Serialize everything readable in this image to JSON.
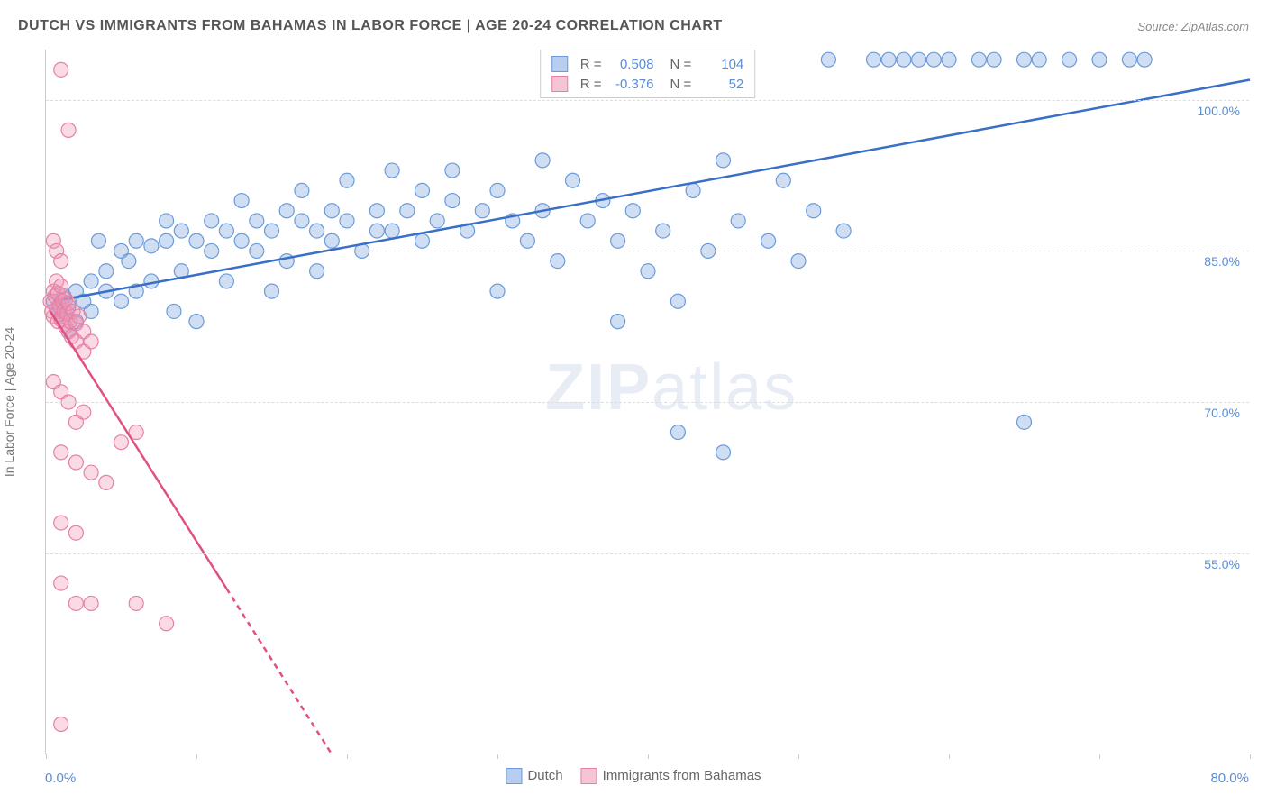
{
  "title": "DUTCH VS IMMIGRANTS FROM BAHAMAS IN LABOR FORCE | AGE 20-24 CORRELATION CHART",
  "source": "Source: ZipAtlas.com",
  "y_axis_label": "In Labor Force | Age 20-24",
  "watermark_zip": "ZIP",
  "watermark_atlas": "atlas",
  "chart": {
    "type": "scatter",
    "xlim": [
      0,
      80
    ],
    "ylim": [
      35,
      105
    ],
    "x_ticks": [
      0,
      10,
      20,
      30,
      40,
      50,
      60,
      70,
      80
    ],
    "x_tick_labels": {
      "0": "0.0%",
      "80": "80.0%"
    },
    "y_ticks": [
      55,
      70,
      85,
      100
    ],
    "y_tick_labels": {
      "55": "55.0%",
      "70": "70.0%",
      "85": "85.0%",
      "100": "100.0%"
    },
    "grid_color": "#dddddd",
    "background_color": "#ffffff",
    "series": [
      {
        "name": "Dutch",
        "label": "Dutch",
        "color_fill": "rgba(120,160,220,0.35)",
        "color_stroke": "#6a9bda",
        "swatch_fill": "#b8cef0",
        "swatch_stroke": "#6a9bda",
        "marker_radius": 8,
        "R": "0.508",
        "N": "104",
        "trend": {
          "x1": 0.5,
          "y1": 80,
          "x2": 80,
          "y2": 102,
          "stroke": "#3a6fc7",
          "width": 2.5,
          "dash_after_x": null
        },
        "points": [
          [
            0.5,
            80
          ],
          [
            0.8,
            79
          ],
          [
            1,
            78.5
          ],
          [
            1.2,
            80.5
          ],
          [
            1.5,
            79.5
          ],
          [
            1.5,
            77
          ],
          [
            2,
            81
          ],
          [
            2,
            78
          ],
          [
            2.5,
            80
          ],
          [
            3,
            82
          ],
          [
            3,
            79
          ],
          [
            3.5,
            86
          ],
          [
            4,
            81
          ],
          [
            4,
            83
          ],
          [
            5,
            85
          ],
          [
            5,
            80
          ],
          [
            5.5,
            84
          ],
          [
            6,
            86
          ],
          [
            6,
            81
          ],
          [
            7,
            85.5
          ],
          [
            7,
            82
          ],
          [
            8,
            86
          ],
          [
            8,
            88
          ],
          [
            8.5,
            79
          ],
          [
            9,
            87
          ],
          [
            9,
            83
          ],
          [
            10,
            86
          ],
          [
            10,
            78
          ],
          [
            11,
            85
          ],
          [
            11,
            88
          ],
          [
            12,
            87
          ],
          [
            12,
            82
          ],
          [
            13,
            86
          ],
          [
            13,
            90
          ],
          [
            14,
            85
          ],
          [
            14,
            88
          ],
          [
            15,
            87
          ],
          [
            15,
            81
          ],
          [
            16,
            89
          ],
          [
            16,
            84
          ],
          [
            17,
            88
          ],
          [
            17,
            91
          ],
          [
            18,
            87
          ],
          [
            18,
            83
          ],
          [
            19,
            89
          ],
          [
            19,
            86
          ],
          [
            20,
            88
          ],
          [
            20,
            92
          ],
          [
            21,
            85
          ],
          [
            22,
            89
          ],
          [
            22,
            87
          ],
          [
            23,
            93
          ],
          [
            23,
            87
          ],
          [
            24,
            89
          ],
          [
            25,
            91
          ],
          [
            25,
            86
          ],
          [
            26,
            88
          ],
          [
            27,
            90
          ],
          [
            27,
            93
          ],
          [
            28,
            87
          ],
          [
            29,
            89
          ],
          [
            30,
            91
          ],
          [
            30,
            81
          ],
          [
            31,
            88
          ],
          [
            32,
            86
          ],
          [
            33,
            94
          ],
          [
            33,
            89
          ],
          [
            34,
            84
          ],
          [
            35,
            92
          ],
          [
            36,
            88
          ],
          [
            37,
            90
          ],
          [
            38,
            86
          ],
          [
            38,
            78
          ],
          [
            39,
            89
          ],
          [
            40,
            83
          ],
          [
            41,
            87
          ],
          [
            42,
            80
          ],
          [
            43,
            91
          ],
          [
            44,
            85
          ],
          [
            45,
            94
          ],
          [
            45,
            65
          ],
          [
            46,
            88
          ],
          [
            42,
            67
          ],
          [
            48,
            86
          ],
          [
            49,
            92
          ],
          [
            50,
            84
          ],
          [
            51,
            89
          ],
          [
            52,
            104
          ],
          [
            53,
            87
          ],
          [
            55,
            104
          ],
          [
            56,
            104
          ],
          [
            57,
            104
          ],
          [
            58,
            104
          ],
          [
            59,
            104
          ],
          [
            60,
            104
          ],
          [
            62,
            104
          ],
          [
            63,
            104
          ],
          [
            65,
            104
          ],
          [
            66,
            104
          ],
          [
            68,
            104
          ],
          [
            70,
            104
          ],
          [
            72,
            104
          ],
          [
            73,
            104
          ],
          [
            65,
            68
          ]
        ]
      },
      {
        "name": "Immigrants from Bahamas",
        "label": "Immigrants from Bahamas",
        "color_fill": "rgba(240,150,180,0.35)",
        "color_stroke": "#e680a5",
        "swatch_fill": "#f5c5d5",
        "swatch_stroke": "#e680a5",
        "marker_radius": 8,
        "R": "-0.376",
        "N": "52",
        "trend": {
          "x1": 0.3,
          "y1": 79,
          "x2": 19,
          "y2": 35,
          "stroke": "#e05085",
          "width": 2.5,
          "dash_after_x": 12
        },
        "points": [
          [
            0.3,
            80
          ],
          [
            0.4,
            79
          ],
          [
            0.5,
            81
          ],
          [
            0.5,
            78.5
          ],
          [
            0.6,
            80.5
          ],
          [
            0.7,
            79.2
          ],
          [
            0.7,
            82
          ],
          [
            0.8,
            78
          ],
          [
            0.8,
            80.8
          ],
          [
            0.9,
            79.5
          ],
          [
            1,
            81.5
          ],
          [
            1,
            78.2
          ],
          [
            1.1,
            80
          ],
          [
            1.2,
            79
          ],
          [
            1.3,
            77.5
          ],
          [
            1.3,
            80.2
          ],
          [
            1.4,
            78.8
          ],
          [
            1.5,
            79.8
          ],
          [
            1.5,
            77
          ],
          [
            1.6,
            78
          ],
          [
            1.7,
            76.5
          ],
          [
            1.8,
            79
          ],
          [
            2,
            77.8
          ],
          [
            2,
            76
          ],
          [
            2.2,
            78.5
          ],
          [
            2.5,
            77
          ],
          [
            2.5,
            75
          ],
          [
            3,
            76
          ],
          [
            1,
            103
          ],
          [
            1.5,
            97
          ],
          [
            0.5,
            86
          ],
          [
            0.7,
            85
          ],
          [
            1,
            84
          ],
          [
            0.5,
            72
          ],
          [
            1,
            71
          ],
          [
            1.5,
            70
          ],
          [
            2,
            68
          ],
          [
            2.5,
            69
          ],
          [
            1,
            65
          ],
          [
            2,
            64
          ],
          [
            3,
            63
          ],
          [
            1,
            58
          ],
          [
            2,
            57
          ],
          [
            4,
            62
          ],
          [
            5,
            66
          ],
          [
            6,
            67
          ],
          [
            1,
            52
          ],
          [
            2,
            50
          ],
          [
            3,
            50
          ],
          [
            8,
            48
          ],
          [
            6,
            50
          ],
          [
            1,
            38
          ]
        ]
      }
    ]
  },
  "stats_box": {
    "rows": [
      {
        "swatch_fill": "#b8cef0",
        "swatch_stroke": "#6a9bda",
        "r_label": "R =",
        "r_val": "0.508",
        "n_label": "N =",
        "n_val": "104"
      },
      {
        "swatch_fill": "#f5c5d5",
        "swatch_stroke": "#e680a5",
        "r_label": "R =",
        "r_val": "-0.376",
        "n_label": "N =",
        "n_val": "52"
      }
    ]
  },
  "legend": {
    "items": [
      {
        "swatch_fill": "#b8cef0",
        "swatch_stroke": "#6a9bda",
        "label": "Dutch"
      },
      {
        "swatch_fill": "#f5c5d5",
        "swatch_stroke": "#e680a5",
        "label": "Immigrants from Bahamas"
      }
    ]
  }
}
